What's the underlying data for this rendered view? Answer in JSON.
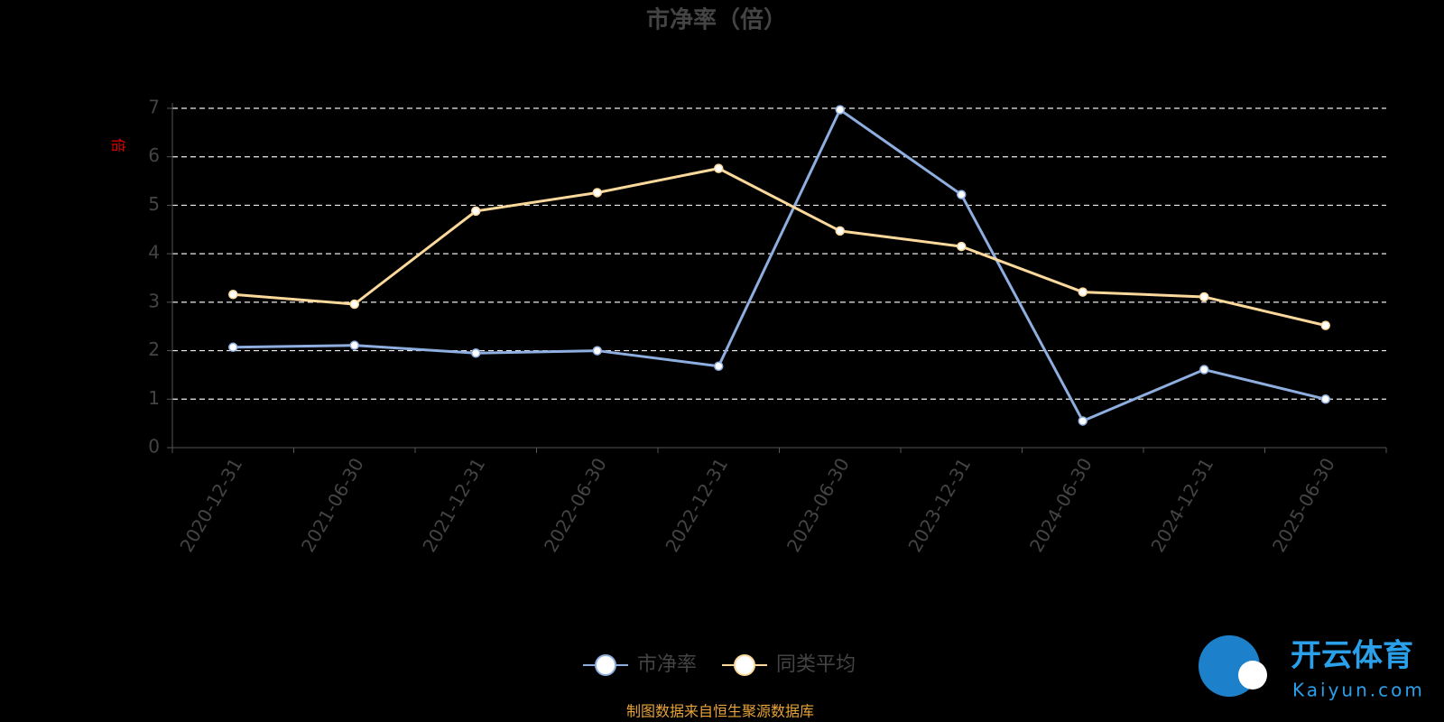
{
  "chart_data": {
    "type": "line",
    "title": "市净率（倍）",
    "y_label": "倍",
    "categories": [
      "2020-12-31",
      "2021-06-30",
      "2021-12-31",
      "2022-06-30",
      "2022-12-31",
      "2023-06-30",
      "2023-12-31",
      "2024-06-30",
      "2024-12-31",
      "2025-06-30"
    ],
    "series": [
      {
        "name": "市净率",
        "color": "#8eaee0",
        "values": [
          2.07,
          2.11,
          1.95,
          2.0,
          1.68,
          6.97,
          5.22,
          0.55,
          1.61,
          1.0
        ]
      },
      {
        "name": "同类平均",
        "color": "#fbd89b",
        "values": [
          3.16,
          2.96,
          4.88,
          5.26,
          5.76,
          4.47,
          4.15,
          3.21,
          3.11,
          2.52
        ]
      }
    ],
    "ylim": [
      0,
      7
    ],
    "yticks": [
      0,
      1,
      2,
      3,
      4,
      5,
      6,
      7
    ],
    "grid": true,
    "source": "制图数据来自恒生聚源数据库",
    "watermark": {
      "brand": "开云体育",
      "site": "Kaiyun.com"
    }
  }
}
